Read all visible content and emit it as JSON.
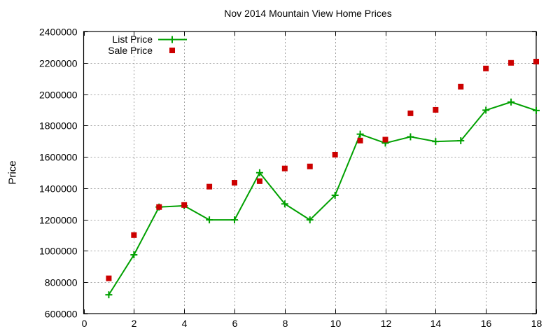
{
  "chart_data": {
    "type": "line",
    "title": "Nov 2014 Mountain View Home Prices",
    "xlabel": "",
    "ylabel": "Price",
    "xlim": [
      0,
      18
    ],
    "ylim": [
      600000,
      2400000
    ],
    "x_ticks": [
      0,
      2,
      4,
      6,
      8,
      10,
      12,
      14,
      16,
      18
    ],
    "y_ticks": [
      600000,
      800000,
      1000000,
      1200000,
      1400000,
      1600000,
      1800000,
      2000000,
      2200000,
      2400000
    ],
    "grid": true,
    "legend_position": "top-left",
    "x": [
      1,
      2,
      3,
      4,
      5,
      6,
      7,
      8,
      9,
      10,
      11,
      12,
      13,
      14,
      15,
      16,
      17,
      18
    ],
    "series": [
      {
        "name": "List Price",
        "style": "linespoints",
        "marker": "plus",
        "color": "#00a000",
        "values": [
          720000,
          975000,
          1280000,
          1288000,
          1198000,
          1198000,
          1499000,
          1300000,
          1198000,
          1355000,
          1745000,
          1688000,
          1728000,
          1698000,
          1703000,
          1898000,
          1950000,
          1896000
        ]
      },
      {
        "name": "Sale Price",
        "style": "points",
        "marker": "square",
        "color": "#cc0000",
        "values": [
          825000,
          1101000,
          1280000,
          1293000,
          1410000,
          1435000,
          1445000,
          1526000,
          1539000,
          1614000,
          1704000,
          1710000,
          1878000,
          1900000,
          2048000,
          2164000,
          2200000,
          2208000
        ]
      }
    ]
  },
  "colors": {
    "axis": "#000000",
    "grid": "#a0a0a0",
    "background": "#ffffff"
  }
}
